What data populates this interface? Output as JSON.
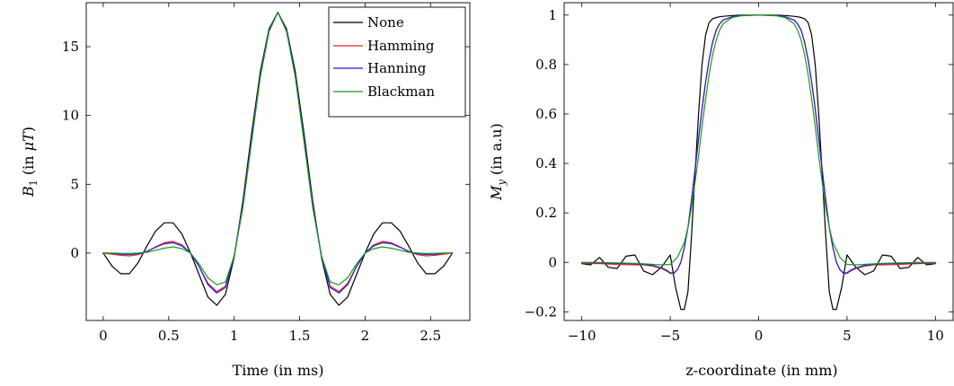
{
  "chart_data": [
    {
      "type": "line",
      "xlabel": "Time (in ms)",
      "ylabel_main": "B",
      "ylabel_sub": "1",
      "ylabel_rest_prefix": " (in ",
      "ylabel_math": "μT",
      "ylabel_rest_suffix": ")",
      "xlim": [
        -0.13,
        2.8
      ],
      "ylim": [
        -4.9,
        18.2
      ],
      "xticks": [
        0,
        0.5,
        1,
        1.5,
        2,
        2.5
      ],
      "xtick_labels": [
        "0",
        "0.5",
        "1",
        "1.5",
        "2",
        "2.5"
      ],
      "yticks": [
        0,
        5,
        10,
        15
      ],
      "ytick_labels": [
        "0",
        "5",
        "10",
        "15"
      ],
      "grid": false,
      "legend": "top-right",
      "series": [
        {
          "name": "None",
          "color": "#000000",
          "x": [
            0,
            0.0667,
            0.1333,
            0.2,
            0.2667,
            0.3333,
            0.4,
            0.4667,
            0.5333,
            0.6,
            0.6667,
            0.7333,
            0.8,
            0.8667,
            0.9333,
            1.0,
            1.0667,
            1.1333,
            1.2,
            1.2667,
            1.3333,
            1.4,
            1.4667,
            1.5333,
            1.6,
            1.6667,
            1.7333,
            1.8,
            1.8667,
            1.9333,
            2.0,
            2.0667,
            2.1333,
            2.2,
            2.2667,
            2.3333,
            2.4,
            2.4667,
            2.5333,
            2.6,
            2.6667
          ],
          "y": [
            0,
            -0.95,
            -1.5,
            -1.5,
            -0.7,
            0.5,
            1.6,
            2.2,
            2.2,
            1.4,
            0,
            -1.6,
            -3.2,
            -3.8,
            -3.0,
            -0.3,
            3.8,
            8.7,
            13.2,
            16.3,
            17.5,
            16.3,
            13.2,
            8.7,
            3.8,
            -0.3,
            -3.0,
            -3.8,
            -3.2,
            -1.6,
            0,
            1.4,
            2.2,
            2.2,
            1.6,
            0.5,
            -0.7,
            -1.5,
            -1.5,
            -0.95,
            0
          ]
        },
        {
          "name": "Hamming",
          "color": "#e8202a",
          "x": [
            0,
            0.0667,
            0.1333,
            0.2,
            0.2667,
            0.3333,
            0.4,
            0.4667,
            0.5333,
            0.6,
            0.6667,
            0.7333,
            0.8,
            0.8667,
            0.9333,
            1.0,
            1.0667,
            1.1333,
            1.2,
            1.2667,
            1.3333,
            1.4,
            1.4667,
            1.5333,
            1.6,
            1.6667,
            1.7333,
            1.8,
            1.8667,
            1.9333,
            2.0,
            2.0667,
            2.1333,
            2.2,
            2.2667,
            2.3333,
            2.4,
            2.4667,
            2.5333,
            2.6,
            2.6667
          ],
          "y": [
            0,
            -0.08,
            -0.16,
            -0.2,
            -0.12,
            0.12,
            0.45,
            0.75,
            0.85,
            0.6,
            0,
            -1.0,
            -2.2,
            -2.8,
            -2.4,
            -0.2,
            3.5,
            8.3,
            12.9,
            16.2,
            17.5,
            16.2,
            12.9,
            8.3,
            3.5,
            -0.2,
            -2.4,
            -2.8,
            -2.2,
            -1.0,
            0,
            0.6,
            0.85,
            0.75,
            0.45,
            0.12,
            -0.12,
            -0.2,
            -0.16,
            -0.08,
            0
          ]
        },
        {
          "name": "Hanning",
          "color": "#1f1fd8",
          "x": [
            0,
            0.0667,
            0.1333,
            0.2,
            0.2667,
            0.3333,
            0.4,
            0.4667,
            0.5333,
            0.6,
            0.6667,
            0.7333,
            0.8,
            0.8667,
            0.9333,
            1.0,
            1.0667,
            1.1333,
            1.2,
            1.2667,
            1.3333,
            1.4,
            1.4667,
            1.5333,
            1.6,
            1.6667,
            1.7333,
            1.8,
            1.8667,
            1.9333,
            2.0,
            2.0667,
            2.1333,
            2.2,
            2.2667,
            2.3333,
            2.4,
            2.4667,
            2.5333,
            2.6,
            2.6667
          ],
          "y": [
            0,
            -0.02,
            -0.08,
            -0.1,
            -0.05,
            0.12,
            0.42,
            0.68,
            0.75,
            0.52,
            0,
            -1.0,
            -2.3,
            -2.9,
            -2.5,
            -0.2,
            3.5,
            8.3,
            12.9,
            16.2,
            17.5,
            16.2,
            12.9,
            8.3,
            3.5,
            -0.2,
            -2.5,
            -2.9,
            -2.3,
            -1.0,
            0,
            0.52,
            0.75,
            0.68,
            0.42,
            0.12,
            -0.05,
            -0.1,
            -0.08,
            -0.02,
            0
          ]
        },
        {
          "name": "Blackman",
          "color": "#1a9a1a",
          "x": [
            0,
            0.0667,
            0.1333,
            0.2,
            0.2667,
            0.3333,
            0.4,
            0.4667,
            0.5333,
            0.6,
            0.6667,
            0.7333,
            0.8,
            0.8667,
            0.9333,
            1.0,
            1.0667,
            1.1333,
            1.2,
            1.2667,
            1.3333,
            1.4,
            1.4667,
            1.5333,
            1.6,
            1.6667,
            1.7333,
            1.8,
            1.8667,
            1.9333,
            2.0,
            2.0667,
            2.1333,
            2.2,
            2.2667,
            2.3333,
            2.4,
            2.4667,
            2.5333,
            2.6,
            2.6667
          ],
          "y": [
            0,
            0,
            -0.02,
            -0.03,
            0,
            0.06,
            0.2,
            0.35,
            0.45,
            0.32,
            0,
            -0.8,
            -1.8,
            -2.3,
            -2.1,
            -0.2,
            3.3,
            8.1,
            12.8,
            16.1,
            17.5,
            16.1,
            12.8,
            8.1,
            3.3,
            -0.2,
            -2.1,
            -2.3,
            -1.8,
            -0.8,
            0,
            0.32,
            0.45,
            0.35,
            0.2,
            0.06,
            0,
            -0.03,
            -0.02,
            0,
            0
          ]
        }
      ]
    },
    {
      "type": "line",
      "xlabel": "z-coordinate (in mm)",
      "ylabel_main": "M",
      "ylabel_sub": "y",
      "ylabel_rest": " (in a.u)",
      "xlim": [
        -11.0,
        11.0
      ],
      "ylim": [
        -0.235,
        1.05
      ],
      "xticks": [
        -10,
        -5,
        0,
        5,
        10
      ],
      "xtick_labels": [
        "−10",
        "−5",
        "0",
        "5",
        "10"
      ],
      "yticks": [
        -0.2,
        0,
        0.2,
        0.4,
        0.6,
        0.8,
        1
      ],
      "ytick_labels": [
        "−0.2",
        "0",
        "0.2",
        "0.4",
        "0.6",
        "0.8",
        "1"
      ],
      "grid": false,
      "legend": "none",
      "series": [
        {
          "name": "None",
          "color": "#000000",
          "x": [
            -10,
            -9.5,
            -9,
            -8.5,
            -8,
            -7.5,
            -7,
            -6.5,
            -6,
            -5.5,
            -5,
            -4.7,
            -4.4,
            -4.2,
            -4.0,
            -3.8,
            -3.6,
            -3.4,
            -3.2,
            -3.0,
            -2.8,
            -2.6,
            -2.4,
            -2.2,
            -2.0,
            -1.5,
            -1,
            0,
            1,
            1.5,
            2.0,
            2.2,
            2.4,
            2.6,
            2.8,
            3.0,
            3.2,
            3.4,
            3.6,
            3.8,
            4.0,
            4.2,
            4.4,
            4.7,
            5,
            5.5,
            6,
            6.5,
            7,
            7.5,
            8,
            8.5,
            9,
            9.5,
            10
          ],
          "y": [
            -0.005,
            -0.01,
            0.02,
            -0.02,
            -0.025,
            0.025,
            0.03,
            -0.035,
            -0.05,
            -0.02,
            0.03,
            -0.1,
            -0.19,
            -0.19,
            -0.12,
            0.1,
            0.35,
            0.6,
            0.8,
            0.92,
            0.97,
            0.985,
            0.99,
            0.993,
            0.995,
            0.998,
            1.0,
            1.0,
            1.0,
            0.998,
            0.995,
            0.993,
            0.99,
            0.985,
            0.97,
            0.92,
            0.8,
            0.6,
            0.35,
            0.1,
            -0.12,
            -0.19,
            -0.19,
            -0.1,
            0.03,
            -0.02,
            -0.05,
            -0.035,
            0.03,
            0.025,
            -0.025,
            -0.02,
            0.02,
            -0.01,
            -0.005
          ]
        },
        {
          "name": "Hamming",
          "color": "#e8202a",
          "x": [
            -10,
            -9,
            -8,
            -7,
            -6.5,
            -6,
            -5.5,
            -5.2,
            -5.0,
            -4.8,
            -4.6,
            -4.4,
            -4.2,
            -4.0,
            -3.8,
            -3.6,
            -3.4,
            -3.2,
            -3.0,
            -2.8,
            -2.6,
            -2.4,
            -2.2,
            -2.0,
            -1.5,
            -1,
            0,
            1,
            1.5,
            2.0,
            2.2,
            2.4,
            2.6,
            2.8,
            3.0,
            3.2,
            3.4,
            3.6,
            3.8,
            4.0,
            4.2,
            4.4,
            4.6,
            4.8,
            5.0,
            5.2,
            5.5,
            6,
            6.5,
            7,
            8,
            9,
            10
          ],
          "y": [
            -0.003,
            -0.005,
            -0.008,
            -0.01,
            -0.01,
            -0.015,
            -0.025,
            -0.035,
            -0.045,
            -0.045,
            -0.03,
            0.0,
            0.06,
            0.14,
            0.25,
            0.37,
            0.5,
            0.62,
            0.73,
            0.82,
            0.89,
            0.94,
            0.965,
            0.98,
            0.993,
            0.998,
            1.0,
            0.998,
            0.993,
            0.98,
            0.965,
            0.94,
            0.89,
            0.82,
            0.73,
            0.62,
            0.5,
            0.37,
            0.25,
            0.14,
            0.06,
            0.0,
            -0.03,
            -0.045,
            -0.045,
            -0.035,
            -0.025,
            -0.015,
            -0.01,
            -0.01,
            -0.008,
            -0.005,
            -0.003
          ]
        },
        {
          "name": "Hanning",
          "color": "#1f1fd8",
          "x": [
            -10,
            -9,
            -8,
            -7,
            -6.5,
            -6,
            -5.5,
            -5.2,
            -5.0,
            -4.8,
            -4.6,
            -4.4,
            -4.2,
            -4.0,
            -3.8,
            -3.6,
            -3.4,
            -3.2,
            -3.0,
            -2.8,
            -2.6,
            -2.4,
            -2.2,
            -2.0,
            -1.5,
            -1,
            0,
            1,
            1.5,
            2.0,
            2.2,
            2.4,
            2.6,
            2.8,
            3.0,
            3.2,
            3.4,
            3.6,
            3.8,
            4.0,
            4.2,
            4.4,
            4.6,
            4.8,
            5.0,
            5.2,
            5.5,
            6,
            6.5,
            7,
            8,
            9,
            10
          ],
          "y": [
            -0.001,
            -0.002,
            -0.004,
            -0.006,
            -0.008,
            -0.012,
            -0.022,
            -0.032,
            -0.042,
            -0.043,
            -0.03,
            0.0,
            0.06,
            0.14,
            0.25,
            0.37,
            0.5,
            0.62,
            0.73,
            0.82,
            0.89,
            0.94,
            0.965,
            0.98,
            0.993,
            0.998,
            1.0,
            0.998,
            0.993,
            0.98,
            0.965,
            0.94,
            0.89,
            0.82,
            0.73,
            0.62,
            0.5,
            0.37,
            0.25,
            0.14,
            0.06,
            0.0,
            -0.03,
            -0.043,
            -0.042,
            -0.032,
            -0.022,
            -0.012,
            -0.008,
            -0.006,
            -0.004,
            -0.002,
            -0.001
          ]
        },
        {
          "name": "Blackman",
          "color": "#1a9a1a",
          "x": [
            -10,
            -9,
            -8,
            -7,
            -6.5,
            -6,
            -5.5,
            -5.0,
            -4.6,
            -4.2,
            -4.0,
            -3.8,
            -3.6,
            -3.4,
            -3.2,
            -3.0,
            -2.8,
            -2.6,
            -2.4,
            -2.2,
            -2.0,
            -1.5,
            -1,
            0,
            1,
            1.5,
            2.0,
            2.2,
            2.4,
            2.6,
            2.8,
            3.0,
            3.2,
            3.4,
            3.6,
            3.8,
            4.0,
            4.2,
            4.6,
            5.0,
            5.5,
            6,
            6.5,
            7,
            8,
            9,
            10
          ],
          "y": [
            0,
            0,
            -0.002,
            -0.004,
            -0.006,
            -0.008,
            -0.01,
            -0.008,
            0.02,
            0.08,
            0.14,
            0.22,
            0.32,
            0.43,
            0.55,
            0.66,
            0.76,
            0.84,
            0.9,
            0.94,
            0.965,
            0.99,
            0.997,
            1.0,
            0.997,
            0.99,
            0.965,
            0.94,
            0.9,
            0.84,
            0.76,
            0.66,
            0.55,
            0.43,
            0.32,
            0.22,
            0.14,
            0.08,
            0.02,
            -0.008,
            -0.01,
            -0.008,
            -0.006,
            -0.004,
            -0.002,
            0,
            0
          ]
        }
      ]
    }
  ]
}
